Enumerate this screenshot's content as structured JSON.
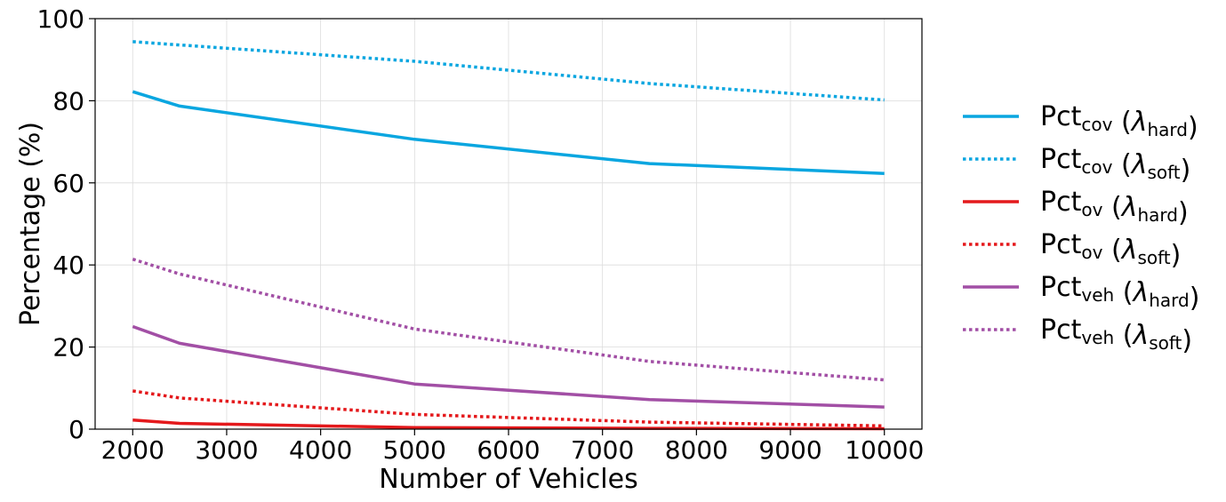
{
  "chart_data": {
    "type": "line",
    "xlabel": "Number of Vehicles",
    "ylabel": "Percentage (%)",
    "xlim": [
      1600,
      10400
    ],
    "ylim": [
      0,
      100
    ],
    "xticks": [
      2000,
      3000,
      4000,
      5000,
      6000,
      7000,
      8000,
      9000,
      10000
    ],
    "yticks": [
      0,
      20,
      40,
      60,
      80,
      100
    ],
    "grid": true,
    "legend_position": "right-outside",
    "x": [
      2000,
      2500,
      5000,
      7500,
      10000
    ],
    "series": [
      {
        "base": "Pct",
        "sub": "cov",
        "lambda_sub": "hard",
        "color": "#0aa6e0",
        "style": "solid",
        "values": [
          82.2,
          78.7,
          70.6,
          64.7,
          62.3
        ]
      },
      {
        "base": "Pct",
        "sub": "cov",
        "lambda_sub": "soft",
        "color": "#0aa6e0",
        "style": "dotted",
        "values": [
          94.4,
          93.6,
          89.6,
          84.2,
          80.2
        ]
      },
      {
        "base": "Pct",
        "sub": "ov",
        "lambda_sub": "hard",
        "color": "#e4191c",
        "style": "solid",
        "values": [
          2.2,
          1.4,
          0.4,
          0.2,
          0.1
        ]
      },
      {
        "base": "Pct",
        "sub": "ov",
        "lambda_sub": "soft",
        "color": "#e4191c",
        "style": "dotted",
        "values": [
          9.3,
          7.6,
          3.6,
          1.7,
          0.8
        ]
      },
      {
        "base": "Pct",
        "sub": "veh",
        "lambda_sub": "hard",
        "color": "#a24fa5",
        "style": "solid",
        "values": [
          25.0,
          20.9,
          11.0,
          7.2,
          5.4
        ]
      },
      {
        "base": "Pct",
        "sub": "veh",
        "lambda_sub": "soft",
        "color": "#a24fa5",
        "style": "dotted",
        "values": [
          41.4,
          37.8,
          24.4,
          16.5,
          12.0
        ]
      }
    ]
  }
}
